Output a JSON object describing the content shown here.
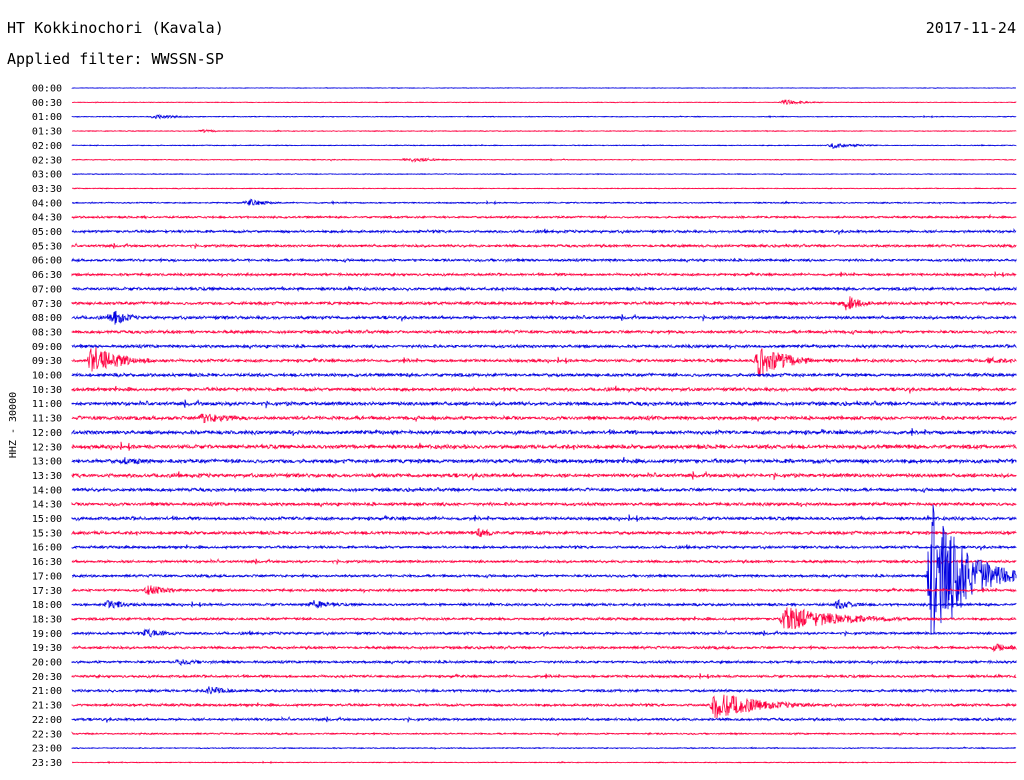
{
  "header": {
    "station": "HT Kokkinochori (Kavala)",
    "date": "2017-11-24",
    "filter": "Applied filter: WWSSN-SP"
  },
  "chart_data": {
    "type": "line",
    "ylabel": "HHZ - 30000",
    "colors": [
      "#0000e0",
      "#ff0040"
    ],
    "trace_labels": [
      "00:00",
      "00:30",
      "01:00",
      "01:30",
      "02:00",
      "02:30",
      "03:00",
      "03:30",
      "04:00",
      "04:30",
      "05:00",
      "05:30",
      "06:00",
      "06:30",
      "07:00",
      "07:30",
      "08:00",
      "08:30",
      "09:00",
      "09:30",
      "10:00",
      "10:30",
      "11:00",
      "11:30",
      "12:00",
      "12:30",
      "13:00",
      "13:30",
      "14:00",
      "14:30",
      "15:00",
      "15:30",
      "16:00",
      "16:30",
      "17:00",
      "17:30",
      "18:00",
      "18:30",
      "19:00",
      "19:30",
      "20:00",
      "20:30",
      "21:00",
      "21:30",
      "22:00",
      "22:30",
      "23:00",
      "23:30"
    ],
    "trace_minutes": 30,
    "noise_level": [
      0.2,
      0.2,
      0.3,
      0.3,
      0.3,
      0.3,
      0.3,
      0.3,
      0.5,
      0.8,
      1.0,
      1.0,
      1.0,
      1.0,
      1.2,
      1.2,
      1.2,
      1.2,
      1.2,
      1.2,
      1.3,
      1.3,
      1.5,
      1.5,
      1.6,
      1.6,
      1.6,
      1.5,
      1.3,
      1.3,
      1.3,
      1.3,
      1.0,
      1.0,
      1.0,
      1.0,
      1.0,
      1.0,
      1.0,
      1.0,
      1.0,
      1.0,
      1.0,
      1.0,
      1.0,
      0.6,
      0.4,
      0.3
    ],
    "events": [
      {
        "trace": 1,
        "minute": 22.5,
        "amp": 4,
        "dur": 1.2
      },
      {
        "trace": 2,
        "minute": 2.5,
        "amp": 3,
        "dur": 1.5
      },
      {
        "trace": 3,
        "minute": 4,
        "amp": 2,
        "dur": 1.2
      },
      {
        "trace": 4,
        "minute": 24,
        "amp": 4,
        "dur": 1.5
      },
      {
        "trace": 5,
        "minute": 10.5,
        "amp": 3,
        "dur": 2
      },
      {
        "trace": 8,
        "minute": 5.5,
        "amp": 5,
        "dur": 1.2
      },
      {
        "trace": 16,
        "minute": 1.2,
        "amp": 12,
        "dur": 1
      },
      {
        "trace": 15,
        "minute": 24.5,
        "amp": 12,
        "dur": 1
      },
      {
        "trace": 19,
        "minute": 0.5,
        "amp": 18,
        "dur": 2
      },
      {
        "trace": 19,
        "minute": 21.7,
        "amp": 20,
        "dur": 2
      },
      {
        "trace": 19,
        "minute": 29,
        "amp": 5,
        "dur": 1.5
      },
      {
        "trace": 23,
        "minute": 4,
        "amp": 6,
        "dur": 2.5
      },
      {
        "trace": 26,
        "minute": 1.5,
        "amp": 5,
        "dur": 2
      },
      {
        "trace": 31,
        "minute": 12.8,
        "amp": 6,
        "dur": 1.2
      },
      {
        "trace": 35,
        "minute": 2.3,
        "amp": 7,
        "dur": 1.5
      },
      {
        "trace": 36,
        "minute": 1,
        "amp": 6,
        "dur": 1.5
      },
      {
        "trace": 36,
        "minute": 7.5,
        "amp": 6,
        "dur": 1.5
      },
      {
        "trace": 36,
        "minute": 24.2,
        "amp": 6,
        "dur": 1.5
      },
      {
        "trace": 37,
        "minute": 22.5,
        "amp": 14,
        "dur": 4
      },
      {
        "trace": 38,
        "minute": 2.2,
        "amp": 5,
        "dur": 2
      },
      {
        "trace": 39,
        "minute": 29.2,
        "amp": 5,
        "dur": 1.5
      },
      {
        "trace": 40,
        "minute": 3.2,
        "amp": 4,
        "dur": 2
      },
      {
        "trace": 42,
        "minute": 4.2,
        "amp": 6,
        "dur": 1.5
      },
      {
        "trace": 43,
        "minute": 20.3,
        "amp": 16,
        "dur": 3
      },
      {
        "trace": 34,
        "minute": 27.2,
        "amp": 95,
        "dur": 2.2
      }
    ]
  }
}
